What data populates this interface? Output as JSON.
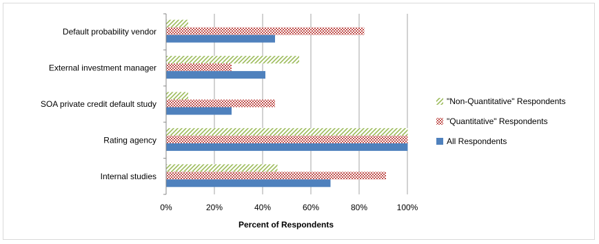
{
  "chart_data": {
    "type": "bar",
    "orientation": "horizontal",
    "title": "",
    "xlabel": "Percent of Respondents",
    "ylabel": "",
    "xlim": [
      0,
      100
    ],
    "x_ticks": [
      "0%",
      "20%",
      "40%",
      "60%",
      "80%",
      "100%"
    ],
    "categories": [
      "Default probability vendor",
      "External investment manager",
      "SOA private credit default study",
      "Rating agency",
      "Internal studies"
    ],
    "series": [
      {
        "name": "\"Non-Quantitative\" Respondents",
        "values": [
          9,
          55,
          9,
          100,
          46
        ],
        "color": "#9bbb59",
        "pattern": "diagonal-hatch"
      },
      {
        "name": "\"Quantitative\" Respondents",
        "values": [
          82,
          27,
          45,
          100,
          91
        ],
        "color": "#c0504d",
        "pattern": "checker"
      },
      {
        "name": "All Respondents",
        "values": [
          45,
          41,
          27,
          100,
          68
        ],
        "color": "#4f81bd",
        "pattern": "solid"
      }
    ],
    "legend_position": "right",
    "grid": true
  }
}
